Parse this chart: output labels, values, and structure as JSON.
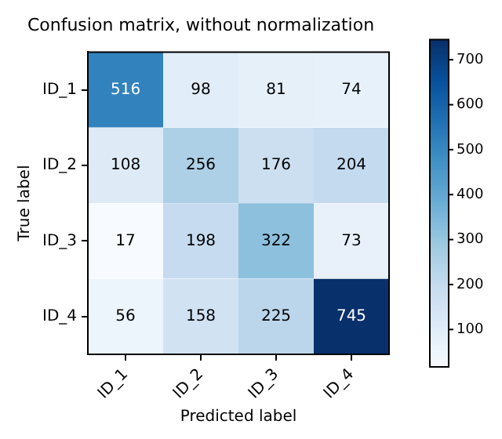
{
  "chart_data": {
    "type": "heatmap",
    "title": "Confusion matrix, without normalization",
    "xlabel": "Predicted label",
    "ylabel": "True label",
    "categories": [
      "ID_1",
      "ID_2",
      "ID_3",
      "ID_4"
    ],
    "y_categories": [
      "ID_1",
      "ID_2",
      "ID_3",
      "ID_4"
    ],
    "cells": [
      [
        516,
        98,
        81,
        74
      ],
      [
        108,
        256,
        176,
        204
      ],
      [
        17,
        198,
        322,
        73
      ],
      [
        56,
        158,
        225,
        745
      ]
    ],
    "clim": [
      17,
      745
    ],
    "cticks": [
      100,
      200,
      300,
      400,
      500,
      600,
      700
    ],
    "data_labels": true
  }
}
